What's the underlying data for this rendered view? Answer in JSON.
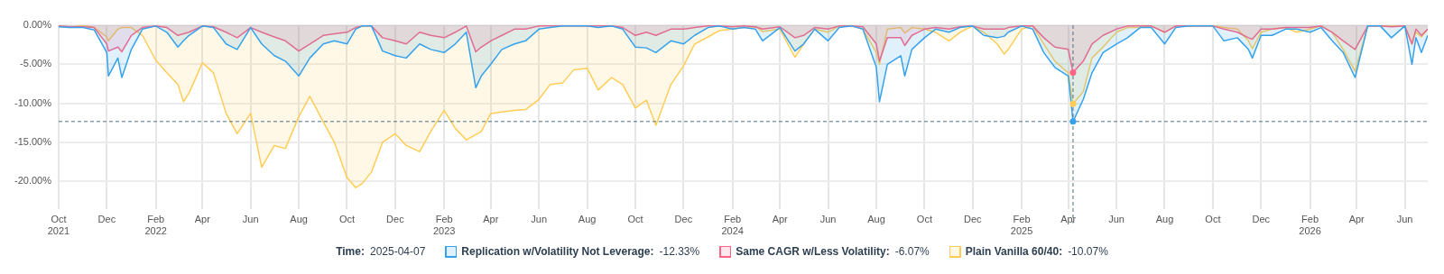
{
  "chart_data": {
    "type": "area",
    "x": [
      "2021-10-01",
      "2021-10-15",
      "2021-11-01",
      "2021-11-15",
      "2021-12-01",
      "2021-12-03",
      "2021-12-15",
      "2021-12-20",
      "2022-01-01",
      "2022-01-15",
      "2022-02-01",
      "2022-02-15",
      "2022-03-01",
      "2022-03-08",
      "2022-03-15",
      "2022-04-01",
      "2022-04-15",
      "2022-05-01",
      "2022-05-15",
      "2022-06-01",
      "2022-06-15",
      "2022-07-01",
      "2022-07-15",
      "2022-08-01",
      "2022-08-15",
      "2022-09-01",
      "2022-09-15",
      "2022-10-01",
      "2022-10-12",
      "2022-10-20",
      "2022-11-01",
      "2022-11-15",
      "2022-12-01",
      "2022-12-15",
      "2023-01-01",
      "2023-01-15",
      "2023-02-01",
      "2023-02-15",
      "2023-03-01",
      "2023-03-13",
      "2023-03-20",
      "2023-04-01",
      "2023-04-15",
      "2023-05-01",
      "2023-05-15",
      "2023-06-01",
      "2023-06-15",
      "2023-07-01",
      "2023-07-15",
      "2023-08-01",
      "2023-08-15",
      "2023-09-01",
      "2023-09-15",
      "2023-10-01",
      "2023-10-15",
      "2023-10-27",
      "2023-11-15",
      "2023-12-01",
      "2023-12-15",
      "2024-01-01",
      "2024-01-15",
      "2024-02-01",
      "2024-02-15",
      "2024-03-01",
      "2024-03-10",
      "2024-04-01",
      "2024-04-20",
      "2024-05-01",
      "2024-05-15",
      "2024-06-01",
      "2024-06-15",
      "2024-07-01",
      "2024-07-15",
      "2024-08-01",
      "2024-08-05",
      "2024-08-15",
      "2024-09-01",
      "2024-09-06",
      "2024-09-15",
      "2024-10-01",
      "2024-10-15",
      "2024-11-01",
      "2024-11-15",
      "2024-12-01",
      "2024-12-15",
      "2025-01-01",
      "2025-01-10",
      "2025-01-15",
      "2025-02-01",
      "2025-02-15",
      "2025-03-01",
      "2025-03-15",
      "2025-04-01",
      "2025-04-07",
      "2025-04-20",
      "2025-05-01",
      "2025-05-15",
      "2025-06-01",
      "2025-06-15",
      "2025-07-01",
      "2025-07-15",
      "2025-08-01",
      "2025-08-15",
      "2025-09-01",
      "2025-09-15",
      "2025-10-01",
      "2025-10-15",
      "2025-11-01",
      "2025-11-15",
      "2025-11-20",
      "2025-12-01",
      "2025-12-15",
      "2026-01-01",
      "2026-01-15",
      "2026-02-01",
      "2026-02-15",
      "2026-03-01",
      "2026-03-15",
      "2026-03-30",
      "2026-04-15",
      "2026-05-01",
      "2026-05-15",
      "2026-06-01",
      "2026-06-10",
      "2026-06-15",
      "2026-06-22",
      "2026-06-30"
    ],
    "series": [
      {
        "name": "Replication w/Volatility Not Leverage:",
        "color": "#36a2eb",
        "values": [
          -0.2,
          -0.3,
          -0.3,
          -0.6,
          -3.5,
          -6.5,
          -4.2,
          -6.7,
          -3.1,
          -0.5,
          -0.1,
          -0.9,
          -2.8,
          -2.0,
          -1.3,
          -0.1,
          -0.3,
          -2.4,
          -3.1,
          -0.3,
          -2.4,
          -3.9,
          -4.6,
          -6.5,
          -4.2,
          -2.4,
          -2.0,
          -2.4,
          -0.5,
          -0.1,
          -0.1,
          -3.3,
          -3.9,
          -4.2,
          -2.4,
          -3.1,
          -3.5,
          -2.4,
          -0.9,
          -8.0,
          -6.5,
          -5.0,
          -3.1,
          -2.4,
          -2.0,
          -0.5,
          -0.3,
          -0.1,
          -0.1,
          -0.1,
          -0.3,
          -0.1,
          -0.5,
          -2.8,
          -2.9,
          -3.5,
          -2.0,
          -2.4,
          -1.3,
          -0.3,
          -0.1,
          -0.5,
          -0.3,
          -0.5,
          -2.0,
          -0.3,
          -3.3,
          -2.4,
          -0.5,
          -2.0,
          -0.3,
          -0.1,
          -0.5,
          -5.4,
          -9.8,
          -5.0,
          -3.9,
          -6.5,
          -3.1,
          -1.6,
          -0.5,
          -0.9,
          -0.3,
          -0.1,
          -1.3,
          -1.6,
          -1.4,
          -0.9,
          -0.1,
          -0.5,
          -3.5,
          -5.4,
          -6.5,
          -12.33,
          -9.5,
          -6.1,
          -3.5,
          -2.4,
          -1.6,
          -0.3,
          -0.3,
          -2.4,
          -0.3,
          -0.1,
          -0.1,
          -0.1,
          -2.0,
          -1.6,
          -3.1,
          -4.2,
          -1.3,
          -1.3,
          -0.5,
          -0.5,
          -0.9,
          -0.3,
          -2.0,
          -3.5,
          -6.7,
          -0.1,
          -0.1,
          -1.6,
          -0.1,
          -5.0,
          -1.6,
          -3.5,
          -1.3
        ]
      },
      {
        "name": "Same CAGR w/Less Volatility:",
        "color": "#ff6384",
        "values": [
          -0.1,
          -0.2,
          -0.2,
          -0.3,
          -2.4,
          -3.3,
          -2.8,
          -3.4,
          -1.3,
          -0.3,
          -0.1,
          -0.3,
          -1.3,
          -1.1,
          -0.9,
          -0.1,
          -0.2,
          -0.9,
          -1.6,
          -0.3,
          -0.9,
          -1.5,
          -2.0,
          -3.3,
          -2.4,
          -1.3,
          -1.1,
          -0.9,
          -0.3,
          -0.1,
          -0.1,
          -1.6,
          -2.0,
          -2.4,
          -0.9,
          -1.3,
          -1.6,
          -0.9,
          -0.1,
          -3.4,
          -2.8,
          -2.0,
          -1.3,
          -0.5,
          -0.5,
          -0.1,
          -0.1,
          -0.1,
          -0.1,
          -0.1,
          -0.1,
          -0.1,
          -0.3,
          -1.3,
          -0.9,
          -1.3,
          -0.5,
          -0.5,
          -0.3,
          -0.1,
          -0.1,
          -0.2,
          -0.1,
          -0.2,
          -0.5,
          -0.2,
          -1.6,
          -1.3,
          -0.3,
          -0.5,
          -0.1,
          -0.1,
          -0.2,
          -2.4,
          -4.6,
          -1.6,
          -1.6,
          -2.6,
          -1.3,
          -0.5,
          -0.3,
          -0.5,
          -0.2,
          -0.1,
          -0.5,
          -0.5,
          -0.5,
          -0.3,
          -0.1,
          -0.1,
          -1.6,
          -2.8,
          -3.1,
          -6.07,
          -4.6,
          -2.4,
          -1.3,
          -0.5,
          -0.1,
          -0.1,
          -0.1,
          -0.9,
          -0.1,
          -0.1,
          -0.1,
          -0.1,
          -0.5,
          -0.9,
          -1.6,
          -1.8,
          -0.5,
          -0.5,
          -0.3,
          -0.3,
          -0.3,
          -0.1,
          -0.9,
          -2.0,
          -3.1,
          -0.1,
          -0.1,
          -0.2,
          -0.1,
          -2.4,
          -0.5,
          -1.3,
          -0.5
        ]
      },
      {
        "name": "Plain Vanilla 60/40:",
        "color": "#ffcd56",
        "values": [
          0,
          -0.3,
          0,
          -0.3,
          -1.5,
          -2.0,
          -0.5,
          -0.3,
          -0.3,
          -1.3,
          -4.5,
          -6.1,
          -7.6,
          -9.8,
          -8.7,
          -4.8,
          -6.1,
          -11.3,
          -13.9,
          -11.3,
          -18.2,
          -15.4,
          -15.8,
          -11.7,
          -9.1,
          -12.4,
          -15.0,
          -19.5,
          -20.8,
          -20.3,
          -18.8,
          -15.0,
          -13.9,
          -15.4,
          -16.2,
          -13.6,
          -10.9,
          -13.2,
          -14.7,
          -14.0,
          -13.6,
          -11.3,
          -11.1,
          -10.9,
          -10.8,
          -9.5,
          -7.6,
          -7.4,
          -5.7,
          -5.5,
          -8.3,
          -6.7,
          -7.6,
          -10.6,
          -9.6,
          -12.8,
          -7.6,
          -5.2,
          -2.4,
          -1.5,
          -0.7,
          -0.5,
          -0.3,
          -0.2,
          -0.8,
          -0.5,
          -4.1,
          -2.4,
          -0.5,
          -0.9,
          -0.1,
          -0.1,
          -0.5,
          -3.5,
          -5.0,
          -0.5,
          -0.3,
          -1.0,
          -0.3,
          -0.5,
          -0.9,
          -2.0,
          -0.9,
          -0.1,
          -0.9,
          -2.4,
          -3.7,
          -3.1,
          -0.5,
          -0.1,
          -2.4,
          -4.6,
          -6.1,
          -10.07,
          -8.5,
          -4.2,
          -2.8,
          -0.9,
          -0.3,
          -0.3,
          -0.1,
          -0.9,
          -0.1,
          -0.1,
          -0.1,
          -0.1,
          -0.3,
          -0.5,
          -2.0,
          -3.0,
          -0.9,
          -0.5,
          -0.3,
          -0.9,
          -0.5,
          -0.1,
          -0.9,
          -3.1,
          -5.9,
          -0.1,
          -0.1,
          -0.1,
          -0.1,
          -2.4,
          -0.9,
          -1.5,
          -0.5
        ]
      }
    ],
    "xlim": [
      "2021-10-01",
      "2026-06-30"
    ],
    "xticks": [
      {
        "value": "2021-10",
        "label": "Oct\n2021"
      },
      {
        "value": "2021-12",
        "label": "Dec"
      },
      {
        "value": "2022-02",
        "label": "Feb\n2022"
      },
      {
        "value": "2022-04",
        "label": "Apr"
      },
      {
        "value": "2022-06",
        "label": "Jun"
      },
      {
        "value": "2022-08",
        "label": "Aug"
      },
      {
        "value": "2022-10",
        "label": "Oct"
      },
      {
        "value": "2022-12",
        "label": "Dec"
      },
      {
        "value": "2023-02",
        "label": "Feb\n2023"
      },
      {
        "value": "2023-04",
        "label": "Apr"
      },
      {
        "value": "2023-06",
        "label": "Jun"
      },
      {
        "value": "2023-08",
        "label": "Aug"
      },
      {
        "value": "2023-10",
        "label": "Oct"
      },
      {
        "value": "2023-12",
        "label": "Dec"
      },
      {
        "value": "2024-02",
        "label": "Feb\n2024"
      },
      {
        "value": "2024-04",
        "label": "Apr"
      },
      {
        "value": "2024-06",
        "label": "Jun"
      },
      {
        "value": "2024-08",
        "label": "Aug"
      },
      {
        "value": "2024-10",
        "label": "Oct"
      },
      {
        "value": "2024-12",
        "label": "Dec"
      },
      {
        "value": "2025-02",
        "label": "Feb\n2025"
      },
      {
        "value": "2025-04",
        "label": "Apr"
      },
      {
        "value": "2025-06",
        "label": "Jun"
      },
      {
        "value": "2025-08",
        "label": "Aug"
      },
      {
        "value": "2025-10",
        "label": "Oct"
      },
      {
        "value": "2025-12",
        "label": "Dec"
      },
      {
        "value": "2026-02",
        "label": "Feb\n2026"
      },
      {
        "value": "2026-04",
        "label": "Apr"
      },
      {
        "value": "2026-06",
        "label": "Jun"
      }
    ],
    "ylim": [
      -23.5,
      0
    ],
    "yticks": [
      {
        "value": 0,
        "label": "0.00%"
      },
      {
        "value": -5,
        "label": "-5.00%"
      },
      {
        "value": -10,
        "label": "-10.00%"
      },
      {
        "value": -15,
        "label": "-15.00%"
      },
      {
        "value": -20,
        "label": "-20.00%"
      }
    ],
    "ref_lines": [
      {
        "axis": "y",
        "value": -12.33,
        "color": "#4f6f82",
        "line_style": "dashed"
      },
      {
        "axis": "x",
        "value": "2025-04-07",
        "color": "#4f6f82",
        "line_style": "dashed"
      }
    ],
    "legend_title": "Time:",
    "annotations": [
      "2025-04-07",
      "-12.33%",
      "-6.07%",
      "-10.07%"
    ],
    "grid": true,
    "legend": "bottom",
    "marker": "none",
    "line_style": "solid"
  }
}
